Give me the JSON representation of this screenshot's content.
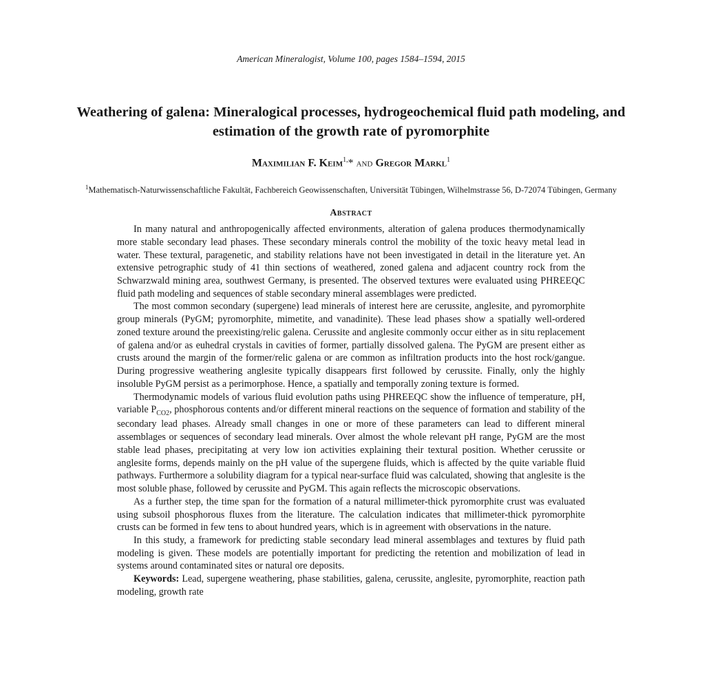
{
  "journal_header": "American Mineralogist, Volume 100, pages 1584–1594, 2015",
  "title": "Weathering of galena: Mineralogical processes, hydrogeochemical fluid path modeling, and estimation of the growth rate of pyromorphite",
  "authors": {
    "author1": "Maximilian F. Keim",
    "author1_sup": "1,",
    "author1_star": "*",
    "connector": " and ",
    "author2": "Gregor Markl",
    "author2_sup": "1"
  },
  "affiliation": {
    "sup": "1",
    "text": "Mathematisch-Naturwissenschaftliche Fakultät, Fachbereich Geowissenschaften, Universität Tübingen, Wilhelmstrasse 56, D-72074 Tübingen, Germany"
  },
  "abstract_heading": "Abstract",
  "abstract": {
    "p1": "In many natural and anthropogenically affected environments, alteration of galena produces thermodynamically more stable secondary lead phases. These secondary minerals control the mobility of the toxic heavy metal lead in water. These textural, paragenetic, and stability relations have not been investigated in detail in the literature yet. An extensive petrographic study of 41 thin sections of weathered, zoned galena and adjacent country rock from the Schwarzwald mining area, southwest Germany, is presented. The observed textures were evaluated using PHREEQC fluid path modeling and sequences of stable secondary mineral assemblages were predicted.",
    "p2": "The most common secondary (supergene) lead minerals of interest here are cerussite, anglesite, and pyromorphite group minerals (PyGM; pyromorphite, mimetite, and vanadinite). These lead phases show a spatially well-ordered zoned texture around the preexisting/relic galena. Cerussite and anglesite commonly occur either as in situ replacement of galena and/or as euhedral crystals in cavities of former, partially dissolved galena. The PyGM are present either as crusts around the margin of the former/relic galena or are common as infiltration products into the host rock/gangue. During progressive weathering anglesite typically disappears first followed by cerussite. Finally, only the highly insoluble PyGM persist as a perimorphose. Hence, a spatially and temporally zoning texture is formed.",
    "p3_part1": "Thermodynamic models of various fluid evolution paths using PHREEQC show the influence of temperature, pH, variable P",
    "p3_sub": "CO2",
    "p3_part2": ", phosphorous contents and/or different mineral reactions on the sequence of formation and stability of the secondary lead phases. Already small changes in one or more of these parameters can lead to different mineral assemblages or sequences of secondary lead minerals. Over almost the whole relevant pH range, PyGM are the most stable lead phases, precipitating at very low ion activities explaining their textural position. Whether cerussite or anglesite forms, depends mainly on the pH value of the supergene fluids, which is affected by the quite variable fluid pathways. Furthermore a solubility diagram for a typical near-surface fluid was calculated, showing that anglesite is the most soluble phase, followed by cerussite and PyGM. This again reflects the microscopic observations.",
    "p4": "As a further step, the time span for the formation of a natural millimeter-thick pyromorphite crust was evaluated using subsoil phosphorous fluxes from the literature. The calculation indicates that millimeter-thick pyromorphite crusts can be formed in few tens to about hundred years, which is in agreement with observations in the nature.",
    "p5": "In this study, a framework for predicting stable secondary lead mineral assemblages and textures by fluid path modeling is given. These models are potentially important for predicting the retention and mobilization of lead in systems around contaminated sites or natural ore deposits."
  },
  "keywords": {
    "label": "Keywords:",
    "text": " Lead, supergene weathering, phase stabilities, galena, cerussite, anglesite, pyromorphite, reaction path modeling, growth rate"
  }
}
